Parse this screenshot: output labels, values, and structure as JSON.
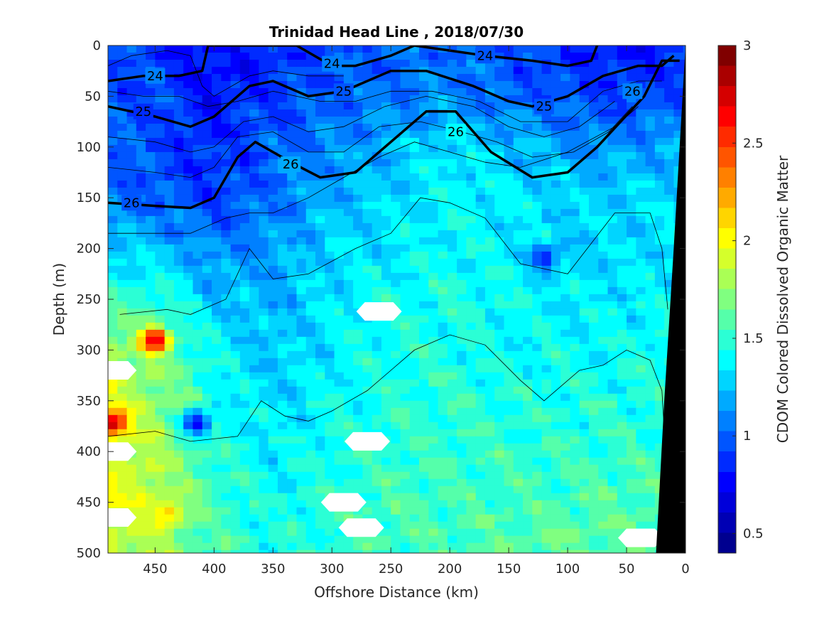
{
  "chart_data": {
    "type": "heatmap",
    "title": "Trinidad Head Line , 2018/07/30",
    "xlabel": "Offshore Distance (km)",
    "ylabel": "Depth (m)",
    "colorbar_label": "CDOM Colored Dissolved Organic Matter",
    "xlim": [
      490,
      0
    ],
    "ylim": [
      0,
      500
    ],
    "x_reversed": true,
    "y_reversed": true,
    "x_ticks": [
      450,
      400,
      350,
      300,
      250,
      200,
      150,
      100,
      50,
      0
    ],
    "y_ticks": [
      0,
      50,
      100,
      150,
      200,
      250,
      300,
      350,
      400,
      450,
      500
    ],
    "color_range": [
      0.4,
      3
    ],
    "colorbar_ticks": [
      0.5,
      1,
      1.5,
      2,
      2.5,
      3
    ],
    "colormap": [
      "#00008f",
      "#0000ff",
      "#0080ff",
      "#00ffff",
      "#80ff80",
      "#ffff00",
      "#ff8000",
      "#ff0000",
      "#800000"
    ],
    "grid": false,
    "field": {
      "description_values": "CDOM",
      "x_nodes": [
        490,
        450,
        400,
        350,
        300,
        250,
        200,
        150,
        100,
        50,
        0
      ],
      "rows": [
        {
          "depth": 0,
          "values": [
            0.95,
            0.9,
            0.75,
            0.85,
            0.95,
            1.0,
            1.05,
            0.95,
            0.85,
            0.8,
            0.85
          ]
        },
        {
          "depth": 50,
          "values": [
            0.95,
            0.95,
            0.8,
            0.9,
            1.0,
            1.05,
            1.1,
            1.0,
            0.95,
            0.9,
            0.95
          ]
        },
        {
          "depth": 100,
          "values": [
            1.0,
            0.95,
            0.85,
            1.0,
            1.1,
            1.2,
            1.35,
            1.25,
            1.15,
            1.15,
            1.2
          ]
        },
        {
          "depth": 150,
          "values": [
            1.05,
            1.0,
            0.9,
            1.05,
            1.2,
            1.3,
            1.4,
            1.35,
            1.3,
            1.3,
            1.3
          ]
        },
        {
          "depth": 200,
          "values": [
            1.3,
            1.25,
            1.1,
            1.15,
            1.3,
            1.35,
            1.4,
            1.35,
            1.3,
            1.3,
            1.35
          ]
        },
        {
          "depth": 250,
          "values": [
            1.5,
            1.5,
            1.25,
            1.2,
            1.35,
            1.4,
            1.45,
            1.4,
            1.35,
            1.35,
            1.4
          ]
        },
        {
          "depth": 300,
          "values": [
            1.8,
            1.7,
            1.4,
            1.25,
            1.35,
            1.45,
            1.45,
            1.4,
            1.4,
            1.4,
            1.45
          ]
        },
        {
          "depth": 350,
          "values": [
            1.9,
            1.75,
            1.45,
            1.3,
            1.4,
            1.45,
            1.5,
            1.45,
            1.45,
            1.45,
            1.5
          ]
        },
        {
          "depth": 400,
          "values": [
            1.9,
            1.8,
            1.5,
            1.35,
            1.45,
            1.5,
            1.5,
            1.5,
            1.5,
            1.5,
            1.5
          ]
        },
        {
          "depth": 450,
          "values": [
            1.95,
            1.85,
            1.55,
            1.4,
            1.5,
            1.55,
            1.55,
            1.55,
            1.55,
            1.6,
            1.55
          ]
        },
        {
          "depth": 500,
          "values": [
            1.9,
            1.8,
            1.55,
            1.45,
            1.5,
            1.55,
            1.55,
            1.6,
            1.65,
            1.6,
            1.55
          ]
        }
      ]
    },
    "hotspots": [
      {
        "x": 450,
        "depth": 290,
        "value": 2.8
      },
      {
        "x": 485,
        "depth": 372,
        "value": 2.75
      },
      {
        "x": 440,
        "depth": 460,
        "value": 2.1
      },
      {
        "x": 415,
        "depth": 372,
        "value": 0.7
      },
      {
        "x": 120,
        "depth": 210,
        "value": 0.85
      }
    ],
    "missing_patches": [
      {
        "x": 260,
        "depth": 262
      },
      {
        "x": 270,
        "depth": 390
      },
      {
        "x": 290,
        "depth": 450
      },
      {
        "x": 275,
        "depth": 475
      },
      {
        "x": 38,
        "depth": 485
      },
      {
        "x": 485,
        "depth": 320
      },
      {
        "x": 485,
        "depth": 400
      },
      {
        "x": 485,
        "depth": 465
      }
    ],
    "seafloor": [
      [
        25,
        500
      ],
      [
        18,
        350
      ],
      [
        10,
        200
      ],
      [
        5,
        100
      ],
      [
        0,
        0
      ],
      [
        0,
        500
      ]
    ],
    "labeled_contours": [
      {
        "label": "24",
        "points": [
          [
            490,
            35
          ],
          [
            460,
            30
          ],
          [
            430,
            30
          ],
          [
            410,
            25
          ],
          [
            405,
            0
          ],
          [
            350,
            0
          ],
          [
            330,
            0
          ],
          [
            300,
            20
          ],
          [
            280,
            20
          ],
          [
            250,
            10
          ],
          [
            230,
            0
          ],
          [
            200,
            5
          ],
          [
            170,
            10
          ],
          [
            130,
            15
          ],
          [
            100,
            20
          ],
          [
            80,
            15
          ],
          [
            75,
            0
          ]
        ],
        "label_positions": [
          [
            450,
            30
          ],
          [
            300,
            18
          ],
          [
            170,
            10
          ]
        ]
      },
      {
        "label": "25",
        "points": [
          [
            490,
            60
          ],
          [
            450,
            70
          ],
          [
            420,
            80
          ],
          [
            400,
            70
          ],
          [
            370,
            40
          ],
          [
            350,
            35
          ],
          [
            320,
            50
          ],
          [
            290,
            45
          ],
          [
            250,
            25
          ],
          [
            220,
            25
          ],
          [
            180,
            40
          ],
          [
            150,
            55
          ],
          [
            130,
            60
          ],
          [
            100,
            50
          ],
          [
            70,
            30
          ],
          [
            40,
            20
          ],
          [
            20,
            20
          ],
          [
            10,
            10
          ]
        ],
        "label_positions": [
          [
            460,
            65
          ],
          [
            290,
            45
          ],
          [
            120,
            60
          ]
        ]
      },
      {
        "label": "26",
        "points": [
          [
            490,
            155
          ],
          [
            450,
            158
          ],
          [
            420,
            160
          ],
          [
            400,
            150
          ],
          [
            380,
            110
          ],
          [
            365,
            95
          ],
          [
            350,
            105
          ],
          [
            335,
            115
          ],
          [
            310,
            130
          ],
          [
            280,
            125
          ],
          [
            250,
            95
          ],
          [
            220,
            65
          ],
          [
            195,
            65
          ],
          [
            165,
            105
          ],
          [
            130,
            130
          ],
          [
            100,
            125
          ],
          [
            75,
            100
          ],
          [
            55,
            75
          ],
          [
            35,
            50
          ],
          [
            20,
            15
          ],
          [
            5,
            15
          ]
        ],
        "label_positions": [
          [
            470,
            155
          ],
          [
            335,
            117
          ],
          [
            195,
            85
          ],
          [
            45,
            45
          ]
        ]
      }
    ],
    "thin_contours": [
      [
        [
          490,
          185
        ],
        [
          450,
          185
        ],
        [
          420,
          185
        ],
        [
          390,
          170
        ],
        [
          370,
          165
        ],
        [
          350,
          165
        ],
        [
          320,
          150
        ],
        [
          290,
          130
        ],
        [
          260,
          110
        ],
        [
          230,
          95
        ],
        [
          200,
          105
        ],
        [
          170,
          115
        ],
        [
          140,
          120
        ],
        [
          100,
          105
        ],
        [
          60,
          80
        ],
        [
          40,
          60
        ]
      ],
      [
        [
          480,
          265
        ],
        [
          440,
          260
        ],
        [
          420,
          265
        ],
        [
          390,
          250
        ],
        [
          370,
          200
        ],
        [
          350,
          230
        ],
        [
          320,
          225
        ],
        [
          280,
          200
        ],
        [
          250,
          185
        ],
        [
          225,
          150
        ],
        [
          200,
          155
        ],
        [
          170,
          170
        ],
        [
          140,
          215
        ],
        [
          100,
          225
        ],
        [
          60,
          165
        ],
        [
          30,
          165
        ],
        [
          20,
          200
        ],
        [
          15,
          260
        ]
      ],
      [
        [
          490,
          385
        ],
        [
          450,
          380
        ],
        [
          420,
          390
        ],
        [
          380,
          385
        ],
        [
          360,
          350
        ],
        [
          340,
          365
        ],
        [
          320,
          370
        ],
        [
          300,
          360
        ],
        [
          270,
          340
        ],
        [
          250,
          320
        ],
        [
          230,
          300
        ],
        [
          200,
          285
        ],
        [
          170,
          295
        ],
        [
          140,
          330
        ],
        [
          120,
          350
        ],
        [
          90,
          320
        ],
        [
          70,
          315
        ],
        [
          50,
          300
        ],
        [
          30,
          310
        ],
        [
          20,
          340
        ],
        [
          18,
          380
        ]
      ],
      [
        [
          490,
          20
        ],
        [
          470,
          10
        ],
        [
          440,
          5
        ],
        [
          420,
          10
        ],
        [
          410,
          40
        ],
        [
          400,
          50
        ],
        [
          370,
          30
        ],
        [
          350,
          25
        ],
        [
          320,
          30
        ],
        [
          290,
          30
        ]
      ],
      [
        [
          490,
          45
        ],
        [
          460,
          50
        ],
        [
          430,
          50
        ],
        [
          405,
          60
        ],
        [
          380,
          55
        ],
        [
          350,
          45
        ],
        [
          310,
          55
        ],
        [
          280,
          55
        ],
        [
          250,
          45
        ],
        [
          215,
          45
        ],
        [
          175,
          55
        ],
        [
          140,
          75
        ],
        [
          100,
          75
        ],
        [
          70,
          45
        ],
        [
          40,
          35
        ],
        [
          20,
          35
        ]
      ],
      [
        [
          490,
          90
        ],
        [
          450,
          95
        ],
        [
          420,
          105
        ],
        [
          400,
          100
        ],
        [
          375,
          75
        ],
        [
          350,
          70
        ],
        [
          320,
          85
        ],
        [
          290,
          80
        ],
        [
          255,
          60
        ],
        [
          220,
          50
        ],
        [
          180,
          60
        ],
        [
          150,
          80
        ],
        [
          120,
          90
        ],
        [
          90,
          80
        ],
        [
          60,
          55
        ]
      ],
      [
        [
          490,
          120
        ],
        [
          450,
          125
        ],
        [
          420,
          130
        ],
        [
          400,
          120
        ],
        [
          380,
          90
        ],
        [
          350,
          85
        ],
        [
          320,
          105
        ],
        [
          290,
          105
        ],
        [
          260,
          80
        ],
        [
          225,
          75
        ],
        [
          190,
          85
        ],
        [
          160,
          95
        ],
        [
          130,
          110
        ],
        [
          95,
          105
        ],
        [
          65,
          85
        ],
        [
          45,
          60
        ]
      ]
    ]
  }
}
